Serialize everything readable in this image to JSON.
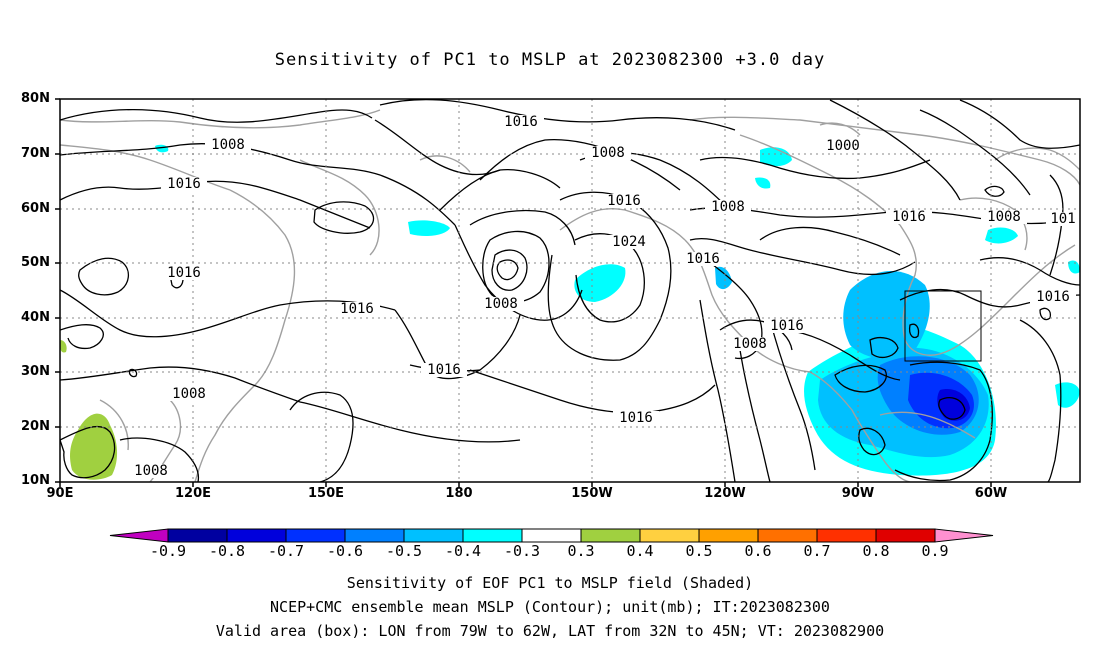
{
  "title": "Sensitivity of PC1 to MSLP at 2023082300 +3.0 day",
  "axes": {
    "lat_labels": [
      "80N",
      "70N",
      "60N",
      "50N",
      "40N",
      "30N",
      "20N",
      "10N"
    ],
    "lon_labels": [
      "90E",
      "120E",
      "150E",
      "180",
      "150W",
      "120W",
      "90W",
      "60W"
    ]
  },
  "contour_labels": [
    {
      "id": "c1",
      "text": "1008"
    },
    {
      "id": "c2",
      "text": "1016"
    },
    {
      "id": "c3",
      "text": "1016"
    },
    {
      "id": "c4",
      "text": "1016"
    },
    {
      "id": "c5",
      "text": "1016"
    },
    {
      "id": "c6",
      "text": "1008"
    },
    {
      "id": "c7",
      "text": "1008"
    },
    {
      "id": "c8",
      "text": "1016"
    },
    {
      "id": "c9",
      "text": "1008"
    },
    {
      "id": "c10",
      "text": "1016"
    },
    {
      "id": "c11",
      "text": "1024"
    },
    {
      "id": "c12",
      "text": "1008"
    },
    {
      "id": "c13",
      "text": "1016"
    },
    {
      "id": "c14",
      "text": "1016"
    },
    {
      "id": "c15",
      "text": "1008"
    },
    {
      "id": "c16",
      "text": "1016"
    },
    {
      "id": "c17",
      "text": "1000"
    },
    {
      "id": "c18",
      "text": "1008"
    },
    {
      "id": "c19",
      "text": "1016"
    },
    {
      "id": "c20",
      "text": "1008"
    },
    {
      "id": "c21",
      "text": "1016"
    },
    {
      "id": "c22",
      "text": "101"
    }
  ],
  "colorbar": {
    "labels": [
      "-0.9",
      "-0.8",
      "-0.7",
      "-0.6",
      "-0.5",
      "-0.4",
      "-0.3",
      "0.3",
      "0.4",
      "0.5",
      "0.6",
      "0.7",
      "0.8",
      "0.9"
    ],
    "colors": [
      "#c000c0",
      "#0000a0",
      "#0000dc",
      "#0030ff",
      "#0080ff",
      "#00c0ff",
      "#00ffff",
      "#ffffff",
      "#a0d040",
      "#ffd040",
      "#ffa000",
      "#ff7000",
      "#ff3000",
      "#e00000",
      "#ff90d0"
    ]
  },
  "captions": {
    "line1": "Sensitivity of EOF PC1 to MSLP field (Shaded)",
    "line2": "NCEP+CMC ensemble mean MSLP (Contour); unit(mb); IT:2023082300",
    "line3": "Valid area (box): LON from 79W to 62W, LAT from 32N to 45N; VT: 2023082900"
  }
}
